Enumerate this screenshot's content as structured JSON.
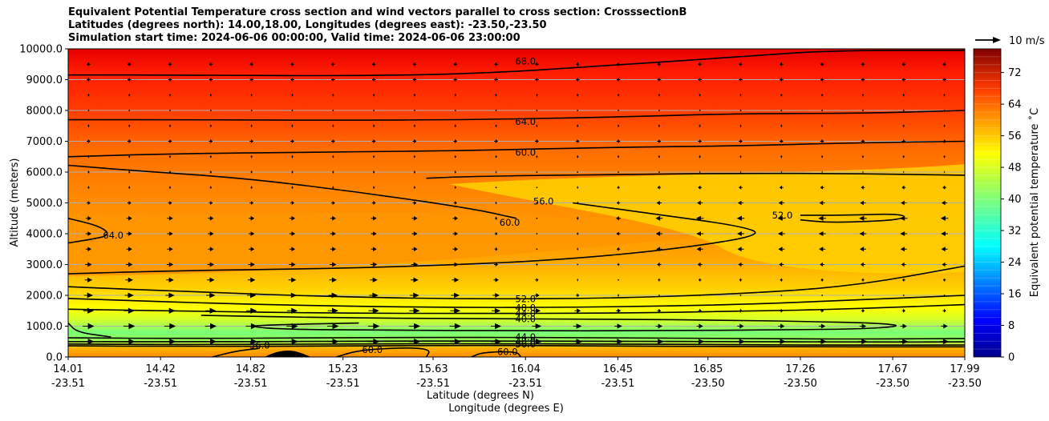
{
  "title_lines": [
    "Equivalent Potential Temperature cross section and wind vectors parallel to cross section: CrosssectionB",
    "Latitudes (degrees north): 14.00,18.00, Longitudes (degrees east): -23.50,-23.50",
    "Simulation start time: 2024-06-06 00:00:00, Valid time: 2024-06-06 23:00:00"
  ],
  "chart_data": {
    "type": "contour_cross_section",
    "ylabel": "Altitude (meters)",
    "xlabel_lat": "Latitude (degrees N)",
    "xlabel_lon": "Longitude (degrees E)",
    "ylim": [
      0,
      10000
    ],
    "y_ticks": [
      "0.0",
      "1000.0",
      "2000.0",
      "3000.0",
      "4000.0",
      "5000.0",
      "6000.0",
      "7000.0",
      "8000.0",
      "9000.0",
      "10000.0"
    ],
    "x_ticks": [
      {
        "lat": "14.01",
        "lon": "-23.51"
      },
      {
        "lat": "14.42",
        "lon": "-23.51"
      },
      {
        "lat": "14.82",
        "lon": "-23.51"
      },
      {
        "lat": "15.23",
        "lon": "-23.51"
      },
      {
        "lat": "15.63",
        "lon": "-23.51"
      },
      {
        "lat": "16.04",
        "lon": "-23.51"
      },
      {
        "lat": "16.45",
        "lon": "-23.51"
      },
      {
        "lat": "16.85",
        "lon": "-23.50"
      },
      {
        "lat": "17.26",
        "lon": "-23.50"
      },
      {
        "lat": "17.67",
        "lon": "-23.50"
      },
      {
        "lat": "17.99",
        "lon": "-23.50"
      }
    ],
    "colorbar_label": "Equivalent potential temperature ˚C",
    "colorbar_ticks": [
      "0",
      "8",
      "16",
      "24",
      "32",
      "40",
      "48",
      "56",
      "64",
      "72"
    ],
    "colorbar_range": [
      0,
      78
    ],
    "quiver_key": "10 m/s",
    "contour_labels": [
      {
        "text": "68.0",
        "lat": 16.04,
        "alt": 9600
      },
      {
        "text": "64.0",
        "lat": 16.04,
        "alt": 7640
      },
      {
        "text": "60.0",
        "lat": 16.04,
        "alt": 6640
      },
      {
        "text": "56.0",
        "lat": 16.12,
        "alt": 5050
      },
      {
        "text": "60.0",
        "lat": 15.97,
        "alt": 4370
      },
      {
        "text": "52.0",
        "lat": 17.18,
        "alt": 4600
      },
      {
        "text": "64.0",
        "lat": 14.21,
        "alt": 3950
      },
      {
        "text": "52.0",
        "lat": 16.04,
        "alt": 1880
      },
      {
        "text": "48.0",
        "lat": 16.04,
        "alt": 1600
      },
      {
        "text": "44.0",
        "lat": 16.04,
        "alt": 1410
      },
      {
        "text": "40.0",
        "lat": 16.04,
        "alt": 1240
      },
      {
        "text": "44.0",
        "lat": 16.04,
        "alt": 650
      },
      {
        "text": "48.0",
        "lat": 16.04,
        "alt": 510
      },
      {
        "text": "56.0",
        "lat": 16.04,
        "alt": 410
      },
      {
        "text": "56.0",
        "lat": 14.86,
        "alt": 380
      },
      {
        "text": "60.0",
        "lat": 15.36,
        "alt": 230
      },
      {
        "text": "60.0",
        "lat": 15.96,
        "alt": 170
      }
    ],
    "contours": [
      {
        "level": 68,
        "points": [
          [
            14.01,
            9150
          ],
          [
            14.6,
            9150
          ],
          [
            15.2,
            9120
          ],
          [
            15.8,
            9180
          ],
          [
            16.4,
            9450
          ],
          [
            17.0,
            9750
          ],
          [
            17.4,
            9950
          ],
          [
            17.99,
            9950
          ]
        ]
      },
      {
        "level": 64,
        "points": [
          [
            14.01,
            7700
          ],
          [
            14.6,
            7700
          ],
          [
            15.2,
            7680
          ],
          [
            15.8,
            7700
          ],
          [
            16.4,
            7780
          ],
          [
            17.0,
            7900
          ],
          [
            17.5,
            7900
          ],
          [
            17.99,
            8000
          ]
        ]
      },
      {
        "level": 60,
        "points": [
          [
            14.01,
            6500
          ],
          [
            14.5,
            6600
          ],
          [
            15.2,
            6650
          ],
          [
            15.8,
            6700
          ],
          [
            16.4,
            6800
          ],
          [
            17.0,
            6850
          ],
          [
            17.5,
            6950
          ],
          [
            17.99,
            7000
          ]
        ]
      },
      {
        "level": 60,
        "points": [
          [
            14.01,
            6220
          ],
          [
            14.3,
            6050
          ],
          [
            14.8,
            5800
          ],
          [
            15.3,
            5350
          ],
          [
            15.8,
            4820
          ],
          [
            16.0,
            4500
          ]
        ]
      },
      {
        "level": 56,
        "points": [
          [
            15.6,
            5800
          ],
          [
            15.8,
            5860
          ],
          [
            16.4,
            5920
          ],
          [
            17.0,
            5960
          ],
          [
            17.5,
            5950
          ],
          [
            17.99,
            5900
          ]
        ]
      },
      {
        "level": 56,
        "points": [
          [
            16.25,
            5000
          ],
          [
            16.6,
            4650
          ],
          [
            17.0,
            4250
          ],
          [
            17.1,
            3950
          ],
          [
            16.7,
            3500
          ],
          [
            16.2,
            3150
          ],
          [
            15.6,
            2950
          ],
          [
            15.0,
            2850
          ],
          [
            14.5,
            2800
          ],
          [
            14.01,
            2700
          ]
        ]
      },
      {
        "level": 52,
        "points": [
          [
            17.26,
            4600
          ],
          [
            17.45,
            4600
          ],
          [
            17.72,
            4650
          ],
          [
            17.72,
            4450
          ],
          [
            17.4,
            4350
          ],
          [
            17.26,
            4450
          ]
        ]
      },
      {
        "level": 64,
        "points": [
          [
            14.01,
            4500
          ],
          [
            14.15,
            4250
          ],
          [
            14.2,
            3950
          ],
          [
            14.1,
            3800
          ],
          [
            14.01,
            3700
          ]
        ]
      },
      {
        "level": 52,
        "points": [
          [
            14.01,
            2280
          ],
          [
            14.6,
            2100
          ],
          [
            15.2,
            1950
          ],
          [
            15.8,
            1880
          ],
          [
            16.4,
            1900
          ],
          [
            17.0,
            2050
          ],
          [
            17.5,
            2300
          ],
          [
            17.99,
            2950
          ]
        ]
      },
      {
        "level": 48,
        "points": [
          [
            14.01,
            1900
          ],
          [
            14.6,
            1750
          ],
          [
            15.2,
            1650
          ],
          [
            15.8,
            1600
          ],
          [
            16.4,
            1620
          ],
          [
            17.0,
            1700
          ],
          [
            17.5,
            1850
          ],
          [
            17.99,
            2000
          ]
        ]
      },
      {
        "level": 44,
        "points": [
          [
            14.01,
            1550
          ],
          [
            14.6,
            1480
          ],
          [
            15.2,
            1420
          ],
          [
            15.8,
            1410
          ],
          [
            16.4,
            1420
          ],
          [
            17.0,
            1480
          ],
          [
            17.5,
            1560
          ],
          [
            17.99,
            1700
          ]
        ]
      },
      {
        "level": 40,
        "points": [
          [
            14.6,
            1350
          ],
          [
            15.2,
            1270
          ],
          [
            15.8,
            1240
          ],
          [
            16.4,
            1230
          ],
          [
            17.0,
            1190
          ],
          [
            17.3,
            1150
          ],
          [
            17.6,
            1100
          ],
          [
            17.72,
            1010
          ],
          [
            17.55,
            910
          ],
          [
            17.2,
            880
          ],
          [
            16.6,
            850
          ],
          [
            16.0,
            850
          ],
          [
            15.4,
            870
          ],
          [
            14.95,
            900
          ],
          [
            14.8,
            1000
          ],
          [
            14.95,
            1050
          ],
          [
            15.3,
            1100
          ]
        ]
      },
      {
        "level": 44,
        "points": [
          [
            14.01,
            620
          ],
          [
            14.5,
            600
          ],
          [
            15.2,
            620
          ],
          [
            15.8,
            640
          ],
          [
            16.4,
            620
          ],
          [
            17.0,
            600
          ],
          [
            17.5,
            580
          ],
          [
            17.99,
            600
          ]
        ]
      },
      {
        "level": 48,
        "points": [
          [
            14.01,
            500
          ],
          [
            14.5,
            490
          ],
          [
            15.2,
            510
          ],
          [
            15.8,
            520
          ],
          [
            16.4,
            510
          ],
          [
            17.0,
            500
          ],
          [
            17.5,
            480
          ],
          [
            17.99,
            490
          ]
        ]
      },
      {
        "level": 56,
        "points": [
          [
            14.01,
            420
          ],
          [
            14.5,
            400
          ],
          [
            15.2,
            420
          ],
          [
            15.8,
            430
          ],
          [
            16.4,
            420
          ],
          [
            17.0,
            400
          ],
          [
            17.5,
            380
          ],
          [
            17.99,
            390
          ]
        ]
      },
      {
        "level": 60,
        "points": [
          [
            14.01,
            360
          ],
          [
            14.5,
            340
          ],
          [
            15.2,
            350
          ],
          [
            15.8,
            380
          ],
          [
            16.4,
            360
          ],
          [
            17.0,
            330
          ],
          [
            17.99,
            330
          ]
        ]
      },
      {
        "level": 56,
        "points": [
          [
            14.65,
            0
          ],
          [
            14.76,
            200
          ],
          [
            14.86,
            280
          ]
        ]
      },
      {
        "level": 60,
        "points": [
          [
            15.2,
            0
          ],
          [
            15.3,
            220
          ],
          [
            15.5,
            310
          ],
          [
            15.62,
            250
          ],
          [
            15.6,
            0
          ]
        ]
      },
      {
        "level": 60,
        "points": [
          [
            15.8,
            0
          ],
          [
            15.85,
            150
          ],
          [
            16.0,
            180
          ],
          [
            16.02,
            0
          ]
        ]
      },
      {
        "level": 40,
        "points": [
          [
            14.01,
            1100
          ],
          [
            14.05,
            800
          ],
          [
            14.2,
            650
          ]
        ]
      }
    ],
    "wind_field": {
      "lat_start": 14.01,
      "lat_end": 17.99,
      "alt_start": 500,
      "alt_step": 500,
      "rows": 19,
      "cols": 22,
      "u_profile": [
        [
          0,
          6
        ],
        [
          1200,
          6
        ],
        [
          2500,
          4
        ],
        [
          3500,
          3
        ],
        [
          4500,
          3
        ],
        [
          5500,
          1
        ],
        [
          6500,
          1
        ],
        [
          7000,
          2
        ],
        [
          8000,
          0
        ],
        [
          9000,
          -2
        ],
        [
          10000,
          -2
        ]
      ],
      "u_east_adjust": [
        [
          0,
          0
        ],
        [
          2000,
          -5
        ],
        [
          3000,
          -6
        ],
        [
          4500,
          -7
        ],
        [
          5500,
          -3
        ],
        [
          6500,
          0
        ],
        [
          10000,
          0
        ]
      ]
    }
  }
}
